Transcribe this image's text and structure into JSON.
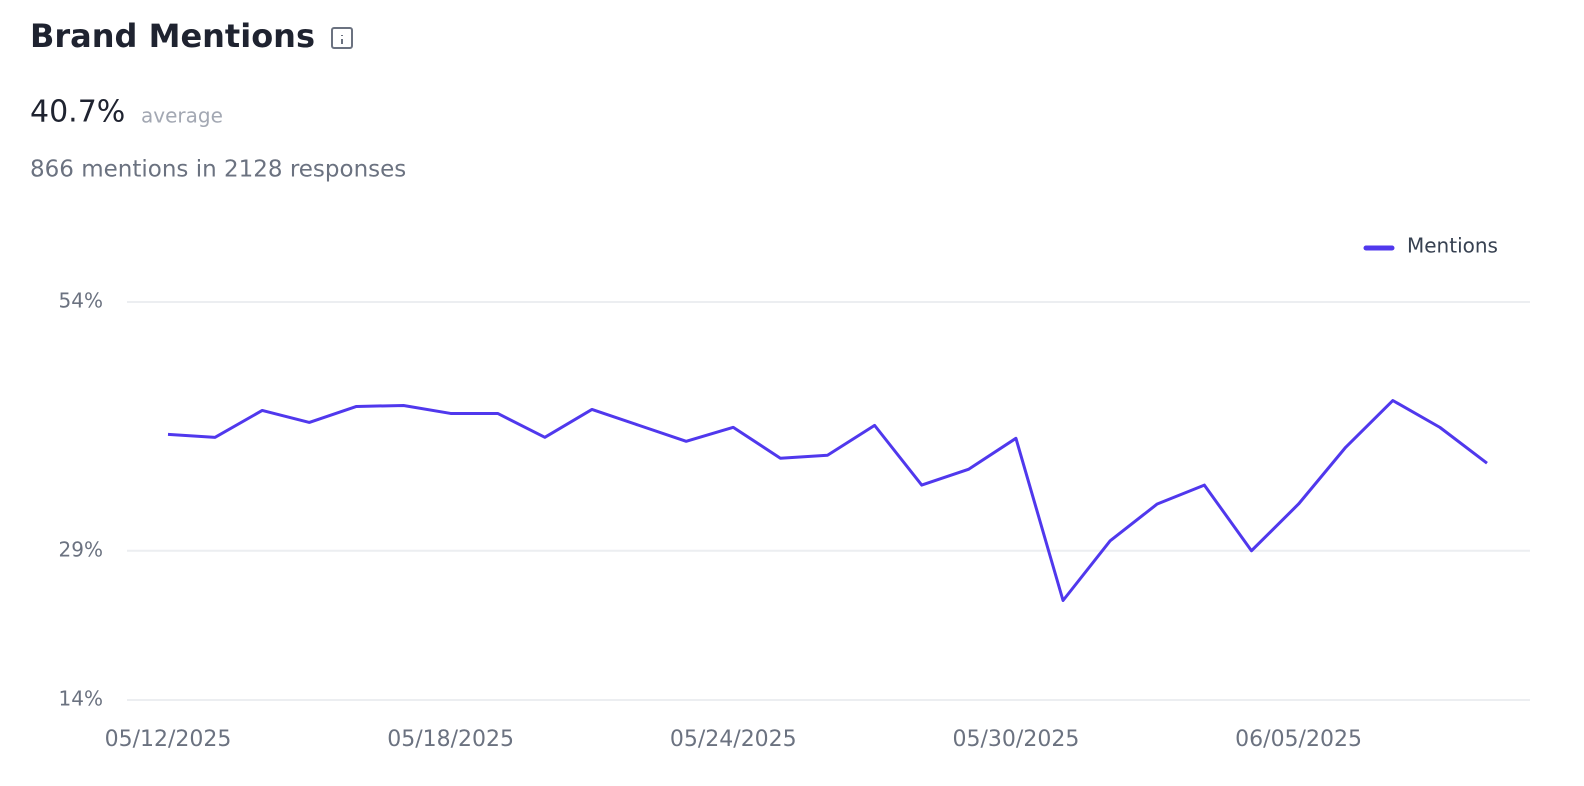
{
  "chart_data": {
    "type": "line",
    "title": "Brand Mentions",
    "summary_value": "40.7%",
    "summary_label": "average",
    "subtitle": "866 mentions in 2128 responses",
    "categories": [
      "05/12/2025",
      null,
      null,
      null,
      null,
      null,
      "05/18/2025",
      null,
      null,
      null,
      null,
      null,
      "05/24/2025",
      null,
      null,
      null,
      null,
      null,
      "05/30/2025",
      null,
      null,
      null,
      null,
      null,
      "06/05/2025",
      null,
      null,
      null,
      null
    ],
    "series": [
      {
        "name": "Mentions",
        "color": "#5038ed",
        "values": [
          40.7,
          40.4,
          43.1,
          41.9,
          43.5,
          43.6,
          42.8,
          42.8,
          40.4,
          43.2,
          41.6,
          40.0,
          41.4,
          38.3,
          38.6,
          41.6,
          35.6,
          37.2,
          40.3,
          24.0,
          30.0,
          33.7,
          35.6,
          29.0,
          33.7,
          39.4,
          44.1,
          41.4,
          37.8
        ]
      }
    ],
    "ylim": [
      14,
      54
    ],
    "yticks": [
      {
        "value": 14,
        "label": "14%"
      },
      {
        "value": 29,
        "label": "29%"
      },
      {
        "value": 54,
        "label": "54%"
      }
    ],
    "grid": true,
    "legend": "top-right"
  }
}
